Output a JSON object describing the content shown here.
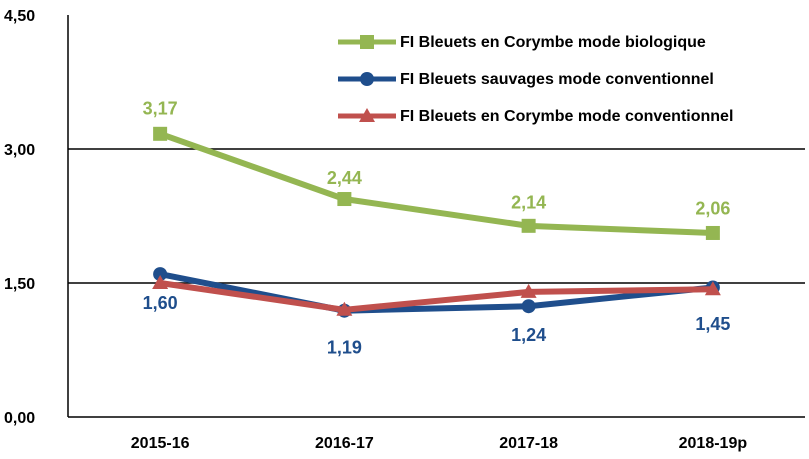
{
  "chart_data": {
    "type": "line",
    "categories": [
      "2015-16",
      "2016-17",
      "2017-18",
      "2018-19p"
    ],
    "series": [
      {
        "name": "FI Bleuets en Corymbe mode biologique",
        "color": "#94b652",
        "marker": "square",
        "values": [
          3.17,
          2.44,
          2.14,
          2.06
        ],
        "value_labels": [
          "3,17",
          "2,44",
          "2,14",
          "2,06"
        ]
      },
      {
        "name": "FI Bleuets sauvages mode conventionnel",
        "color": "#1f4e8c",
        "marker": "circle",
        "values": [
          1.6,
          1.19,
          1.24,
          1.45
        ],
        "value_labels": [
          "1,60",
          "1,19",
          "1,24",
          "1,45"
        ]
      },
      {
        "name": "FI Bleuets en Corymbe mode conventionnel",
        "color": "#c0504d",
        "marker": "triangle",
        "values": [
          1.5,
          1.2,
          1.4,
          1.43
        ]
      }
    ],
    "ylim": [
      0,
      4.5
    ],
    "yticks": [
      {
        "value": 0,
        "label": "0,00"
      },
      {
        "value": 1.5,
        "label": "1,50"
      },
      {
        "value": 3,
        "label": "3,00"
      },
      {
        "value": 4.5,
        "label": "4,50"
      }
    ],
    "grid": true
  }
}
